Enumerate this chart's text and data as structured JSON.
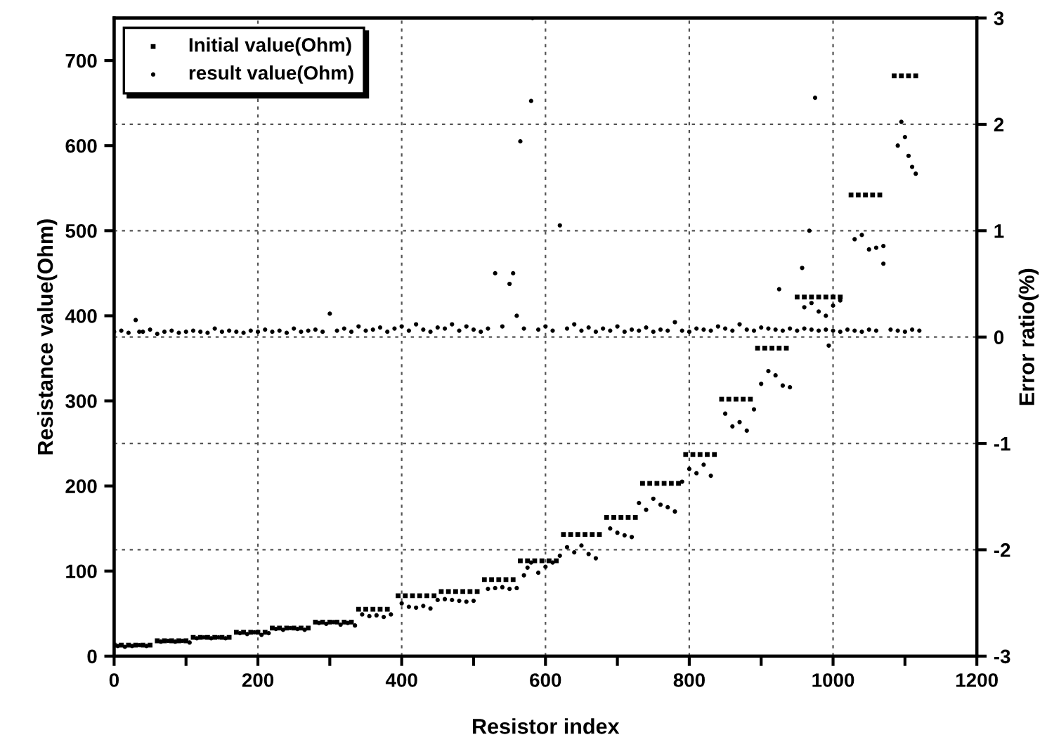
{
  "chart_data": {
    "type": "scatter",
    "xlabel": "Resistor index",
    "ylabel": "Resistance value(Ohm)",
    "y2label": "Error ratio(%)",
    "xlim": [
      0,
      1200
    ],
    "xticks": [
      0,
      {
        "value": 100,
        "label": null
      },
      200,
      {
        "value": 300,
        "label": null
      },
      400,
      {
        "value": 500,
        "label": null
      },
      600,
      {
        "value": 700,
        "label": null
      },
      800,
      {
        "value": 900,
        "label": null
      },
      1000,
      {
        "value": 1100,
        "label": null
      },
      1200
    ],
    "ylim": [
      0,
      750
    ],
    "yticks": [
      0,
      100,
      200,
      300,
      400,
      500,
      600,
      700
    ],
    "y2lim": [
      -3,
      3
    ],
    "y2ticks": [
      -3,
      -2,
      -1,
      0,
      1,
      2,
      3
    ],
    "grid": true,
    "legend": "top left",
    "series": [
      {
        "name": "Initial value(Ohm)",
        "color": "#000000",
        "marker": "square",
        "x": [
          0,
          10,
          20,
          30,
          40,
          50,
          60,
          70,
          80,
          90,
          100,
          110,
          120,
          130,
          140,
          150,
          160,
          170,
          180,
          190,
          200,
          210,
          220,
          230,
          240,
          250,
          260,
          270,
          280,
          290,
          300,
          310,
          320,
          330,
          340,
          350,
          360,
          370,
          380,
          395,
          405,
          415,
          425,
          435,
          445,
          455,
          465,
          475,
          485,
          495,
          505,
          515,
          525,
          535,
          545,
          555,
          565,
          575,
          585,
          595,
          605,
          615,
          625,
          635,
          645,
          655,
          665,
          675,
          685,
          695,
          705,
          715,
          725,
          735,
          745,
          755,
          765,
          775,
          785,
          795,
          805,
          815,
          825,
          835,
          845,
          855,
          865,
          875,
          885,
          895,
          905,
          915,
          925,
          935,
          950,
          960,
          970,
          980,
          990,
          1000,
          1010,
          1025,
          1035,
          1045,
          1055,
          1065,
          1085,
          1095,
          1105,
          1115
        ],
        "values": [
          13,
          13,
          13,
          13,
          13,
          13,
          18,
          18,
          18,
          18,
          18,
          22,
          22,
          22,
          22,
          22,
          22,
          28,
          28,
          28,
          28,
          28,
          33,
          33,
          33,
          33,
          33,
          33,
          40,
          40,
          40,
          40,
          40,
          40,
          55,
          55,
          55,
          55,
          55,
          71,
          71,
          71,
          71,
          71,
          71,
          76,
          76,
          76,
          76,
          76,
          76,
          90,
          90,
          90,
          90,
          90,
          112,
          112,
          112,
          112,
          112,
          112,
          143,
          143,
          143,
          143,
          143,
          143,
          163,
          163,
          163,
          163,
          163,
          203,
          203,
          203,
          203,
          203,
          203,
          237,
          237,
          237,
          237,
          237,
          302,
          302,
          302,
          302,
          302,
          362,
          362,
          362,
          362,
          362,
          422,
          422,
          422,
          422,
          422,
          422,
          422,
          542,
          542,
          542,
          542,
          542,
          682,
          682,
          682,
          682
        ]
      },
      {
        "name": "result value(Ohm)",
        "color": "#000000",
        "marker": "circle",
        "x": [
          5,
          15,
          25,
          35,
          45,
          65,
          75,
          85,
          95,
          105,
          115,
          125,
          135,
          145,
          155,
          175,
          185,
          195,
          205,
          215,
          225,
          235,
          245,
          255,
          265,
          285,
          295,
          305,
          315,
          325,
          335,
          345,
          355,
          365,
          375,
          385,
          400,
          410,
          420,
          430,
          440,
          450,
          460,
          470,
          480,
          490,
          500,
          520,
          530,
          540,
          550,
          560,
          570,
          575,
          580,
          590,
          600,
          610,
          620,
          630,
          640,
          650,
          660,
          670,
          690,
          700,
          710,
          720,
          730,
          740,
          750,
          760,
          770,
          780,
          790,
          800,
          810,
          820,
          830,
          850,
          860,
          870,
          880,
          890,
          900,
          910,
          920,
          930,
          940,
          960,
          970,
          980,
          990,
          1000,
          1010,
          1030,
          1040,
          1050,
          1060,
          1070,
          1090,
          1095,
          1100,
          1105,
          1110,
          1115
        ],
        "values": [
          12,
          11,
          12,
          13,
          12,
          17,
          18,
          17,
          18,
          16,
          21,
          22,
          21,
          22,
          21,
          27,
          26,
          28,
          25,
          27,
          32,
          31,
          33,
          32,
          31,
          39,
          38,
          40,
          37,
          39,
          36,
          49,
          47,
          48,
          46,
          49,
          62,
          58,
          57,
          59,
          56,
          66,
          67,
          66,
          65,
          64,
          65,
          79,
          80,
          81,
          79,
          80,
          95,
          104,
          110,
          98,
          105,
          110,
          118,
          128,
          122,
          130,
          120,
          115,
          150,
          145,
          142,
          140,
          180,
          172,
          185,
          178,
          175,
          170,
          205,
          220,
          215,
          225,
          212,
          285,
          270,
          275,
          265,
          290,
          320,
          335,
          330,
          318,
          316,
          410,
          415,
          405,
          400,
          412,
          418,
          490,
          495,
          478,
          480,
          482,
          600,
          628,
          610,
          588,
          575,
          567
        ]
      },
      {
        "color": "#000000",
        "marker": "circle",
        "axis": "y2",
        "x": [
          0,
          10,
          20,
          30,
          35,
          40,
          50,
          60,
          70,
          80,
          90,
          100,
          110,
          120,
          130,
          140,
          150,
          160,
          170,
          180,
          190,
          200,
          210,
          220,
          230,
          240,
          250,
          260,
          270,
          280,
          290,
          300,
          310,
          320,
          330,
          340,
          350,
          360,
          370,
          380,
          390,
          400,
          410,
          420,
          430,
          440,
          450,
          460,
          470,
          480,
          490,
          500,
          510,
          520,
          530,
          540,
          550,
          555,
          560,
          565,
          570,
          580,
          582,
          590,
          600,
          610,
          620,
          630,
          640,
          650,
          660,
          670,
          680,
          690,
          700,
          710,
          720,
          730,
          740,
          750,
          760,
          770,
          780,
          790,
          800,
          810,
          820,
          830,
          840,
          850,
          860,
          870,
          880,
          890,
          900,
          910,
          920,
          925,
          930,
          940,
          950,
          957,
          960,
          967,
          970,
          975,
          980,
          990,
          994,
          1000,
          1010,
          1020,
          1030,
          1040,
          1050,
          1060,
          1070,
          1080,
          1090,
          1100,
          1110,
          1120
        ],
        "values": [
          0.05,
          0.06,
          0.04,
          0.16,
          0.05,
          0.05,
          0.07,
          0.03,
          0.05,
          0.06,
          0.04,
          0.05,
          0.06,
          0.05,
          0.04,
          0.08,
          0.05,
          0.06,
          0.05,
          0.04,
          0.06,
          0.05,
          0.07,
          0.05,
          0.06,
          0.04,
          0.08,
          0.05,
          0.06,
          0.07,
          0.05,
          0.22,
          0.06,
          0.08,
          0.05,
          0.1,
          0.06,
          0.07,
          0.09,
          0.05,
          0.08,
          0.1,
          0.06,
          0.12,
          0.07,
          0.05,
          0.09,
          0.08,
          0.12,
          0.06,
          0.1,
          0.07,
          0.05,
          0.08,
          0.6,
          0.1,
          0.5,
          0.6,
          0.2,
          1.84,
          0.08,
          2.22,
          3.0,
          0.07,
          0.1,
          0.06,
          1.05,
          0.08,
          0.12,
          0.06,
          0.09,
          0.05,
          0.08,
          0.06,
          0.1,
          0.05,
          0.07,
          0.06,
          0.09,
          0.05,
          0.07,
          0.06,
          0.14,
          0.06,
          0.05,
          0.08,
          0.07,
          0.06,
          0.1,
          0.08,
          0.06,
          0.12,
          0.07,
          0.06,
          0.09,
          0.08,
          0.07,
          0.45,
          0.06,
          0.08,
          0.06,
          0.65,
          0.08,
          1.0,
          0.07,
          2.25,
          0.06,
          0.07,
          -0.08,
          0.06,
          0.05,
          0.07,
          0.06,
          0.05,
          0.07,
          0.06,
          0.69,
          0.07,
          0.06,
          0.05,
          0.07,
          0.06
        ]
      }
    ]
  }
}
